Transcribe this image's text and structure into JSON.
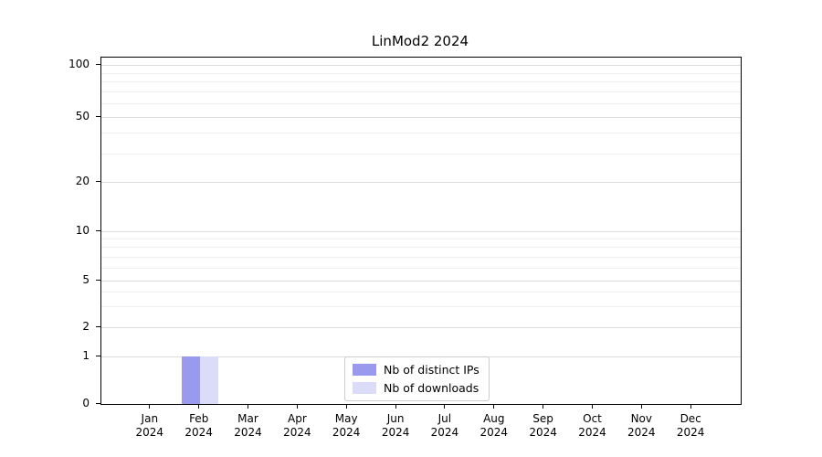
{
  "chart_data": {
    "type": "bar",
    "title": "LinMod2 2024",
    "x_categories": [
      "Jan",
      "Feb",
      "Mar",
      "Apr",
      "May",
      "Jun",
      "Jul",
      "Aug",
      "Sep",
      "Oct",
      "Nov",
      "Dec"
    ],
    "x_year": "2024",
    "series": [
      {
        "name": "Nb of distinct IPs",
        "color": "#9999ed",
        "values": [
          0,
          1,
          0,
          0,
          0,
          0,
          0,
          0,
          0,
          0,
          0,
          0
        ]
      },
      {
        "name": "Nb of downloads",
        "color": "#dadcf8",
        "values": [
          0,
          1,
          0,
          0,
          0,
          0,
          0,
          0,
          0,
          0,
          0,
          0
        ]
      }
    ],
    "y_ticks": [
      0,
      1,
      2,
      5,
      10,
      20,
      50,
      100
    ],
    "y_minor_ticks": [
      3,
      4,
      6,
      7,
      8,
      9,
      30,
      40,
      60,
      70,
      80,
      90
    ],
    "y_axis_scale": "log-like with linear segment below 1",
    "ylim": [
      0,
      100
    ],
    "grid": "horizontal",
    "legend_position": "lower center",
    "axis_color": "#000000",
    "major_grid_color": "#dcdcdc",
    "minor_grid_color": "#eeeeee"
  }
}
